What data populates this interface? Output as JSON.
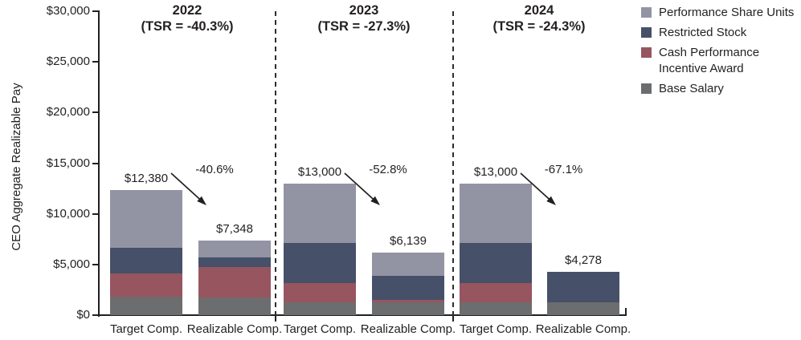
{
  "chart_data": {
    "type": "bar",
    "stacked": true,
    "title": "",
    "ylabel": "CEO Aggregate Realizable Pay",
    "xlabel": "",
    "ylim": [
      0,
      30000
    ],
    "ytick_step": 5000,
    "ytick_labels": [
      "$0",
      "$5,000",
      "$10,000",
      "$15,000",
      "$20,000",
      "$25,000",
      "$30,000"
    ],
    "grid": false,
    "legend_position": "right",
    "stack_order_bottom_to_top": [
      "base",
      "cash",
      "rs",
      "psu"
    ],
    "legend": [
      {
        "key": "psu",
        "label": "Performance Share Units",
        "color": "#9293A3"
      },
      {
        "key": "rs",
        "label": "Restricted Stock",
        "color": "#465069"
      },
      {
        "key": "cash",
        "label": "Cash Performance Incentive Award",
        "color": "#97555F"
      },
      {
        "key": "base",
        "label": "Base Salary",
        "color": "#6C6D6F"
      }
    ],
    "colors": {
      "psu": "#9293A3",
      "rs": "#465069",
      "cash": "#97555F",
      "base": "#6C6D6F",
      "axis": "#231F20",
      "divider": "#2E2E2E",
      "text": "#231F20"
    },
    "groups": [
      {
        "year": "2022",
        "tsr_label": "(TSR = -40.3%)",
        "pct_change_label": "-40.6%",
        "bars": [
          {
            "label": "Target Comp.",
            "total": 12380,
            "total_label": "$12,380",
            "segments": {
              "base": 1800,
              "cash": 2280,
              "rs": 2530,
              "psu": 5770
            }
          },
          {
            "label": "Realizable Comp.",
            "total": 7348,
            "total_label": "$7,348",
            "segments": {
              "base": 1720,
              "cash": 2990,
              "rs": 975,
              "psu": 1663
            }
          }
        ]
      },
      {
        "year": "2023",
        "tsr_label": "(TSR = -27.3%)",
        "pct_change_label": "-52.8%",
        "bars": [
          {
            "label": "Target Comp.",
            "total": 13000,
            "total_label": "$13,000",
            "segments": {
              "base": 1275,
              "cash": 1900,
              "rs": 3965,
              "psu": 5860
            }
          },
          {
            "label": "Realizable Comp.",
            "total": 6139,
            "total_label": "$6,139",
            "segments": {
              "base": 1270,
              "cash": 265,
              "rs": 2380,
              "psu": 2224
            }
          }
        ]
      },
      {
        "year": "2024",
        "tsr_label": "(TSR = -24.3%)",
        "pct_change_label": "-67.1%",
        "bars": [
          {
            "label": "Target Comp.",
            "total": 13000,
            "total_label": "$13,000",
            "segments": {
              "base": 1300,
              "cash": 1870,
              "rs": 3970,
              "psu": 5860
            }
          },
          {
            "label": "Realizable Comp.",
            "total": 4278,
            "total_label": "$4,278",
            "segments": {
              "base": 1270,
              "cash": 0,
              "rs": 3008,
              "psu": 0
            }
          }
        ]
      }
    ]
  }
}
